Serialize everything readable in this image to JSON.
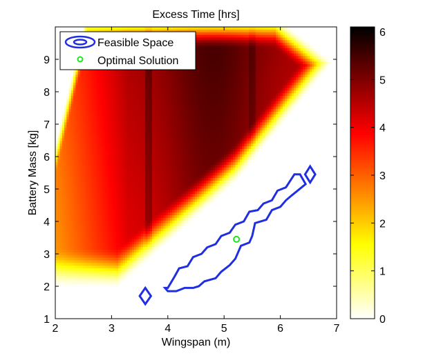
{
  "chart_data": {
    "type": "heatmap",
    "title": "Excess Time [hrs]",
    "xlabel": "Wingspan (m)",
    "ylabel": "Battery Mass [kg]",
    "xlim": [
      2,
      7
    ],
    "ylim": [
      1,
      10
    ],
    "x_ticks": [
      "2",
      "3",
      "4",
      "5",
      "6",
      "7"
    ],
    "y_ticks": [
      "1",
      "2",
      "3",
      "4",
      "5",
      "6",
      "7",
      "8",
      "9"
    ],
    "colorbar": {
      "min": 0,
      "max": 6.1,
      "ticks": [
        "0",
        "1",
        "2",
        "3",
        "4",
        "5",
        "6"
      ],
      "colormap": "hot (reversed)"
    },
    "legend": {
      "placement": "top-left",
      "entries": [
        "Feasible Space",
        "Optimal Solution"
      ]
    },
    "series": [
      {
        "name": "Feasible Space",
        "kind": "contour",
        "color": "#1f2ee0",
        "polygons": [
          [
            [
              4.0,
              1.95
            ],
            [
              4.12,
              2.3
            ],
            [
              4.2,
              2.55
            ],
            [
              4.35,
              2.62
            ],
            [
              4.45,
              2.9
            ],
            [
              4.6,
              3.0
            ],
            [
              4.7,
              3.2
            ],
            [
              4.85,
              3.3
            ],
            [
              4.95,
              3.55
            ],
            [
              5.1,
              3.65
            ],
            [
              5.2,
              3.9
            ],
            [
              5.35,
              4.0
            ],
            [
              5.45,
              4.3
            ],
            [
              5.6,
              4.35
            ],
            [
              5.7,
              4.55
            ],
            [
              5.85,
              4.65
            ],
            [
              5.95,
              4.95
            ],
            [
              6.1,
              5.05
            ],
            [
              6.25,
              5.45
            ],
            [
              6.35,
              5.45
            ],
            [
              6.45,
              5.15
            ],
            [
              6.2,
              4.8
            ],
            [
              6.1,
              4.65
            ],
            [
              6.0,
              4.45
            ],
            [
              5.85,
              4.35
            ],
            [
              5.75,
              4.05
            ],
            [
              5.55,
              3.95
            ],
            [
              5.5,
              3.55
            ],
            [
              5.45,
              3.35
            ],
            [
              5.3,
              3.25
            ],
            [
              5.2,
              2.85
            ],
            [
              5.1,
              2.65
            ],
            [
              4.95,
              2.45
            ],
            [
              4.85,
              2.25
            ],
            [
              4.65,
              2.15
            ],
            [
              4.55,
              2.0
            ],
            [
              4.45,
              1.95
            ],
            [
              4.3,
              1.95
            ],
            [
              4.15,
              1.85
            ],
            [
              4.0,
              1.85
            ],
            [
              3.95,
              1.95
            ],
            [
              4.0,
              1.95
            ]
          ],
          [
            [
              3.6,
              1.45
            ],
            [
              3.7,
              1.7
            ],
            [
              3.6,
              1.95
            ],
            [
              3.5,
              1.7
            ],
            [
              3.6,
              1.45
            ]
          ],
          [
            [
              6.53,
              5.2
            ],
            [
              6.62,
              5.45
            ],
            [
              6.53,
              5.7
            ],
            [
              6.44,
              5.45
            ],
            [
              6.53,
              5.2
            ]
          ]
        ]
      },
      {
        "name": "Optimal Solution",
        "kind": "marker",
        "color": "#19e619",
        "points": [
          [
            5.22,
            3.45
          ]
        ]
      }
    ]
  }
}
